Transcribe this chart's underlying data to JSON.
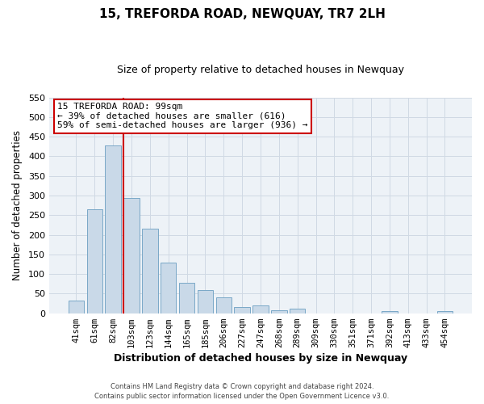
{
  "title": "15, TREFORDA ROAD, NEWQUAY, TR7 2LH",
  "subtitle": "Size of property relative to detached houses in Newquay",
  "xlabel": "Distribution of detached houses by size in Newquay",
  "ylabel": "Number of detached properties",
  "bar_labels": [
    "41sqm",
    "61sqm",
    "82sqm",
    "103sqm",
    "123sqm",
    "144sqm",
    "165sqm",
    "185sqm",
    "206sqm",
    "227sqm",
    "247sqm",
    "268sqm",
    "289sqm",
    "309sqm",
    "330sqm",
    "351sqm",
    "371sqm",
    "392sqm",
    "413sqm",
    "433sqm",
    "454sqm"
  ],
  "bar_heights": [
    32,
    265,
    428,
    293,
    215,
    130,
    77,
    60,
    40,
    15,
    20,
    8,
    11,
    0,
    0,
    0,
    0,
    5,
    0,
    0,
    5
  ],
  "bar_color": "#c9d9e8",
  "bar_edge_color": "#7aa8c7",
  "grid_color": "#d0d9e4",
  "background_color": "#edf2f7",
  "ylim": [
    0,
    550
  ],
  "yticks": [
    0,
    50,
    100,
    150,
    200,
    250,
    300,
    350,
    400,
    450,
    500,
    550
  ],
  "vline_color": "#cc0000",
  "annotation_title": "15 TREFORDA ROAD: 99sqm",
  "annotation_line1": "← 39% of detached houses are smaller (616)",
  "annotation_line2": "59% of semi-detached houses are larger (936) →",
  "annotation_box_color": "#ffffff",
  "annotation_box_edge": "#cc0000",
  "footer_line1": "Contains HM Land Registry data © Crown copyright and database right 2024.",
  "footer_line2": "Contains public sector information licensed under the Open Government Licence v3.0."
}
